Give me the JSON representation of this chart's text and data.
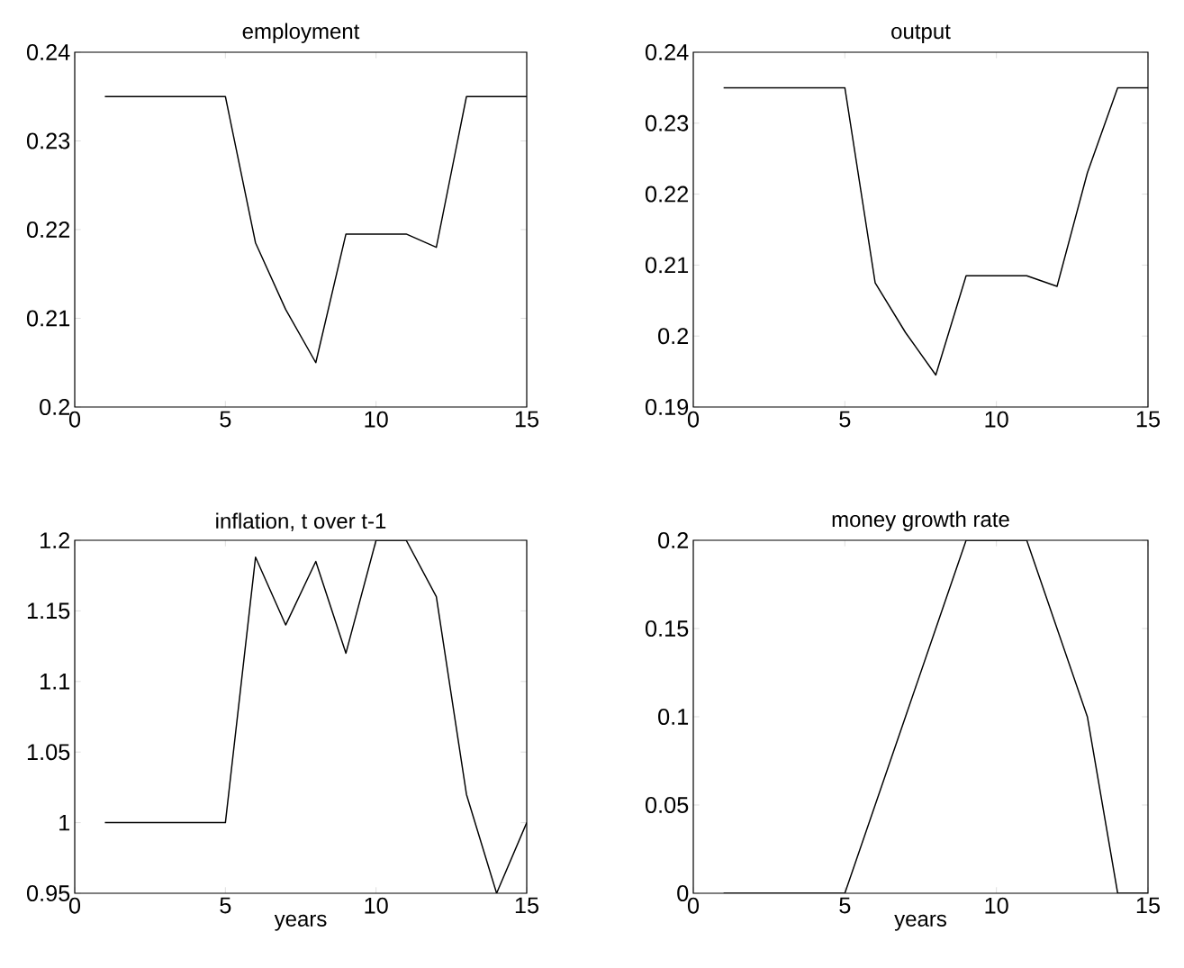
{
  "chart_data": [
    {
      "type": "line",
      "title": "employment",
      "x": [
        1,
        2,
        3,
        4,
        5,
        6,
        7,
        8,
        9,
        10,
        11,
        12,
        13,
        14,
        15
      ],
      "xlim": [
        0,
        15
      ],
      "xticks": [
        0,
        5,
        10,
        15
      ],
      "ylim": [
        0.2,
        0.24
      ],
      "yticks": [
        0.2,
        0.21,
        0.22,
        0.23,
        0.24
      ],
      "series": [
        {
          "color": "#000000",
          "values": [
            0.235,
            0.235,
            0.235,
            0.235,
            0.235,
            0.2185,
            0.211,
            0.205,
            0.2195,
            0.2195,
            0.2195,
            0.218,
            0.235,
            0.235,
            0.235
          ]
        }
      ]
    },
    {
      "type": "line",
      "title": "output",
      "x": [
        1,
        2,
        3,
        4,
        5,
        6,
        7,
        8,
        9,
        10,
        11,
        12,
        13,
        14,
        15
      ],
      "xlim": [
        0,
        15
      ],
      "xticks": [
        0,
        5,
        10,
        15
      ],
      "ylim": [
        0.19,
        0.24
      ],
      "yticks": [
        0.19,
        0.2,
        0.21,
        0.22,
        0.23,
        0.24
      ],
      "series": [
        {
          "color": "#000000",
          "values": [
            0.235,
            0.235,
            0.235,
            0.235,
            0.235,
            0.2075,
            0.2005,
            0.1945,
            0.2085,
            0.2085,
            0.2085,
            0.207,
            0.223,
            0.235,
            0.235
          ]
        }
      ]
    },
    {
      "type": "line",
      "title": "inflation, t over t-1",
      "xlabel": "years",
      "x": [
        1,
        2,
        3,
        4,
        5,
        6,
        7,
        8,
        9,
        10,
        11,
        12,
        13,
        14,
        15
      ],
      "xlim": [
        0,
        15
      ],
      "xticks": [
        0,
        5,
        10,
        15
      ],
      "ylim": [
        0.95,
        1.2
      ],
      "yticks": [
        0.95,
        1,
        1.05,
        1.1,
        1.15,
        1.2
      ],
      "series": [
        {
          "color": "#000000",
          "values": [
            1,
            1,
            1,
            1,
            1,
            1.188,
            1.14,
            1.185,
            1.12,
            1.2,
            1.2,
            1.16,
            1.02,
            0.95,
            1
          ]
        }
      ]
    },
    {
      "type": "line",
      "title": "money growth rate",
      "xlabel": "years",
      "x": [
        1,
        2,
        3,
        4,
        5,
        6,
        7,
        8,
        9,
        10,
        11,
        12,
        13,
        14,
        15
      ],
      "xlim": [
        0,
        15
      ],
      "xticks": [
        0,
        5,
        10,
        15
      ],
      "ylim": [
        0,
        0.2
      ],
      "yticks": [
        0,
        0.05,
        0.1,
        0.15,
        0.2
      ],
      "series": [
        {
          "color": "#000000",
          "values": [
            0,
            0,
            0,
            0,
            0,
            0.05,
            0.1,
            0.15,
            0.2,
            0.2,
            0.2,
            0.15,
            0.1,
            0,
            0
          ]
        }
      ]
    }
  ]
}
